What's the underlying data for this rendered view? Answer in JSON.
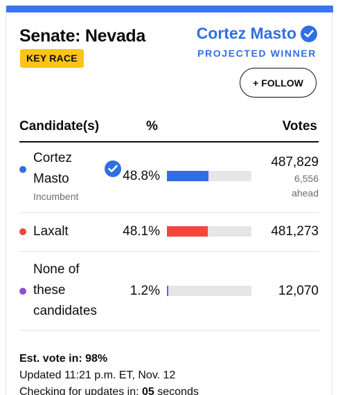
{
  "race": {
    "title": "Senate: Nevada",
    "badge": "KEY RACE",
    "winner_name": "Cortez Masto",
    "winner_label": "PROJECTED WINNER",
    "follow_label": "+ FOLLOW"
  },
  "table": {
    "headers": {
      "candidate": "Candidate(s)",
      "percent": "%",
      "votes": "Votes"
    },
    "rows": [
      {
        "name_line1": "Cortez",
        "name_line2": "Masto",
        "status": "Incumbent",
        "percent": "48.8%",
        "share": 0.488,
        "votes": "487,829",
        "lead_line1": "6,556",
        "lead_line2": "ahead",
        "color": "#2f6fe4",
        "winner": true
      },
      {
        "name_line1": "Laxalt",
        "percent": "48.1%",
        "share": 0.481,
        "votes": "481,273",
        "color": "#f2463c"
      },
      {
        "name_line1": "None of",
        "name_line2": "these",
        "name_line3": "candidates",
        "percent": "1.2%",
        "share": 0.012,
        "votes": "12,070",
        "color": "#8f4fd1"
      }
    ]
  },
  "footer": {
    "est_vote": "Est. vote in: 98%",
    "updated": "Updated 11:21 p.m. ET, Nov. 12",
    "checking_prefix": "Checking for updates in: ",
    "checking_count": "05",
    "checking_suffix": " seconds"
  },
  "colors": {
    "accent": "#2f6fe4",
    "badge": "#fcc419",
    "republican": "#f2463c",
    "other": "#8f4fd1"
  },
  "icons": {
    "winner_check": "check-circle-icon"
  }
}
